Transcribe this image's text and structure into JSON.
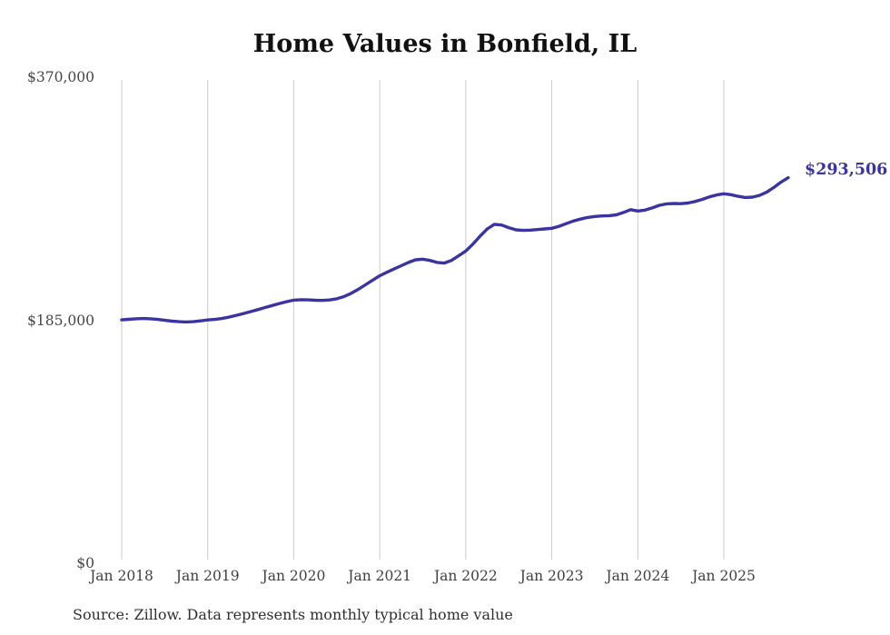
{
  "chart_data": {
    "type": "line",
    "title": "Home Values in Bonfield, IL",
    "ylabel": "",
    "xlabel": "",
    "ylim": [
      0,
      370000
    ],
    "grid": "vertical-yearly-only",
    "legend": "none",
    "y_ticks": [
      {
        "label": "$370,000",
        "value": 370000
      },
      {
        "label": "$185,000",
        "value": 185000
      },
      {
        "label": "$0",
        "value": 0
      }
    ],
    "x_tick_labels": [
      "Jan 2018",
      "Jan 2019",
      "Jan 2020",
      "Jan 2021",
      "Jan 2022",
      "Jan 2023",
      "Jan 2024",
      "Jan 2025"
    ],
    "months": [
      "Jan 2018",
      "Feb 2018",
      "Mar 2018",
      "Apr 2018",
      "May 2018",
      "Jun 2018",
      "Jul 2018",
      "Aug 2018",
      "Sep 2018",
      "Oct 2018",
      "Nov 2018",
      "Dec 2018",
      "Jan 2019",
      "Feb 2019",
      "Mar 2019",
      "Apr 2019",
      "May 2019",
      "Jun 2019",
      "Jul 2019",
      "Aug 2019",
      "Sep 2019",
      "Oct 2019",
      "Nov 2019",
      "Dec 2019",
      "Jan 2020",
      "Feb 2020",
      "Mar 2020",
      "Apr 2020",
      "May 2020",
      "Jun 2020",
      "Jul 2020",
      "Aug 2020",
      "Sep 2020",
      "Oct 2020",
      "Nov 2020",
      "Dec 2020",
      "Jan 2021",
      "Feb 2021",
      "Mar 2021",
      "Apr 2021",
      "May 2021",
      "Jun 2021",
      "Jul 2021",
      "Aug 2021",
      "Sep 2021",
      "Oct 2021",
      "Nov 2021",
      "Dec 2021",
      "Jan 2022",
      "Feb 2022",
      "Mar 2022",
      "Apr 2022",
      "May 2022",
      "Jun 2022",
      "Jul 2022",
      "Aug 2022",
      "Sep 2022",
      "Oct 2022",
      "Nov 2022",
      "Dec 2022",
      "Jan 2023",
      "Feb 2023",
      "Mar 2023",
      "Apr 2023",
      "May 2023",
      "Jun 2023",
      "Jul 2023",
      "Aug 2023",
      "Sep 2023",
      "Oct 2023",
      "Nov 2023",
      "Dec 2023",
      "Jan 2024",
      "Feb 2024",
      "Mar 2024",
      "Apr 2024",
      "May 2024",
      "Jun 2024",
      "Jul 2024",
      "Aug 2024",
      "Sep 2024",
      "Oct 2024",
      "Nov 2024",
      "Dec 2024",
      "Jan 2025",
      "Feb 2025",
      "Mar 2025",
      "Apr 2025",
      "May 2025",
      "Jun 2025",
      "Jul 2025",
      "Aug 2025",
      "Sep 2025",
      "Oct 2025"
    ],
    "series": [
      {
        "name": "Monthly typical home value",
        "values": [
          185300,
          185700,
          186100,
          186300,
          186100,
          185600,
          184900,
          184300,
          183900,
          183700,
          183900,
          184500,
          185200,
          185600,
          186300,
          187400,
          188700,
          190100,
          191600,
          193100,
          194700,
          196200,
          197700,
          199100,
          200300,
          200600,
          200500,
          200200,
          200100,
          200400,
          201300,
          203000,
          205500,
          208500,
          212000,
          215500,
          218800,
          221500,
          224000,
          226500,
          229000,
          231000,
          231500,
          230500,
          229000,
          228500,
          230500,
          234000,
          237700,
          243000,
          249000,
          254500,
          258000,
          257500,
          255500,
          253800,
          253400,
          253600,
          254000,
          254500,
          255000,
          256500,
          258500,
          260500,
          262000,
          263200,
          264000,
          264400,
          264600,
          265200,
          267000,
          269200,
          268100,
          268800,
          270500,
          272500,
          273600,
          273900,
          273700,
          274200,
          275400,
          277000,
          278900,
          280400,
          281300,
          280600,
          279300,
          278400,
          278700,
          280100,
          282600,
          286200,
          290200,
          293506
        ]
      }
    ],
    "end_label": "$293,506",
    "final_value": 293506,
    "colors": {
      "line": "#3a34a0",
      "grid": "#cbcbcb",
      "axis_text": "#454545",
      "title_text": "#111111",
      "end_label_text": "#3a34a0",
      "source_text": "#2f2f2f"
    }
  },
  "source": {
    "note": "Source: Zillow. Data represents monthly typical home value"
  }
}
